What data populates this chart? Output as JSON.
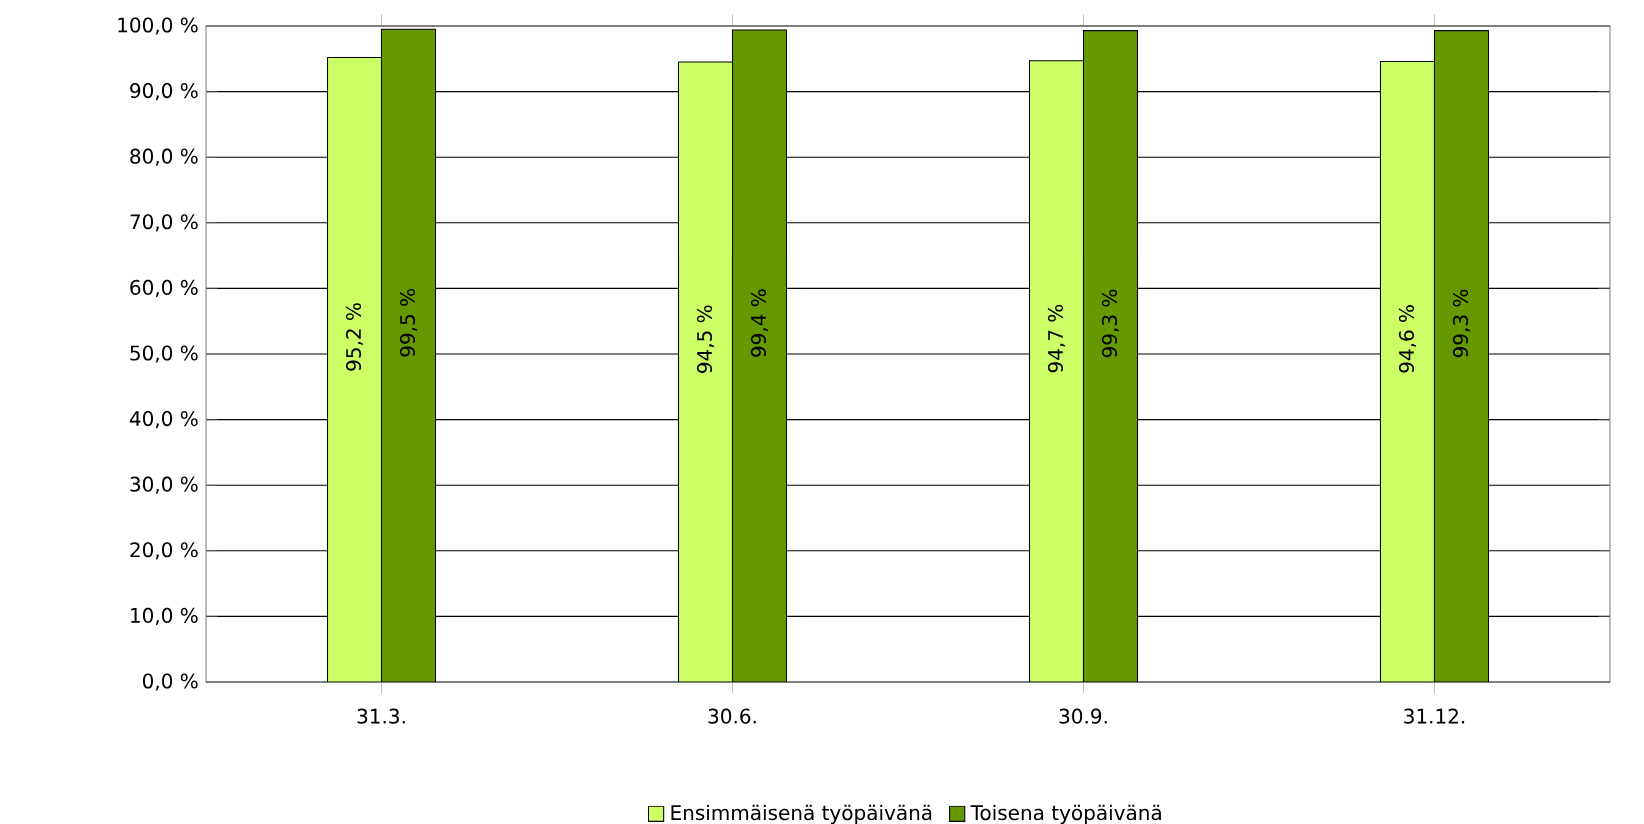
{
  "chart_data": {
    "type": "bar",
    "categories": [
      "31.3.",
      "30.6.",
      "30.9.",
      "31.12."
    ],
    "series": [
      {
        "name": "Ensimmäisenä työpäivänä",
        "color": "#ccff66",
        "values": [
          95.2,
          94.5,
          94.7,
          94.6
        ],
        "value_labels": [
          "95,2 %",
          "94,5 %",
          "94,7 %",
          "94,6 %"
        ]
      },
      {
        "name": "Toisena työpäivänä",
        "color": "#669900",
        "values": [
          99.5,
          99.4,
          99.3,
          99.3
        ],
        "value_labels": [
          "99,5 %",
          "99,4 %",
          "99,3 %",
          "99,3 %"
        ]
      }
    ],
    "ylim": [
      0,
      100
    ],
    "yticks": [
      {
        "value": 0,
        "label": "0,0 %"
      },
      {
        "value": 10,
        "label": "10,0 %"
      },
      {
        "value": 20,
        "label": "20,0 %"
      },
      {
        "value": 30,
        "label": "30,0 %"
      },
      {
        "value": 40,
        "label": "40,0 %"
      },
      {
        "value": 50,
        "label": "50,0 %"
      },
      {
        "value": 60,
        "label": "60,0 %"
      },
      {
        "value": 70,
        "label": "70,0 %"
      },
      {
        "value": 80,
        "label": "80,0 %"
      },
      {
        "value": 90,
        "label": "90,0 %"
      },
      {
        "value": 100,
        "label": "100,0 %"
      }
    ],
    "grid": "y",
    "legend": "bottom"
  }
}
